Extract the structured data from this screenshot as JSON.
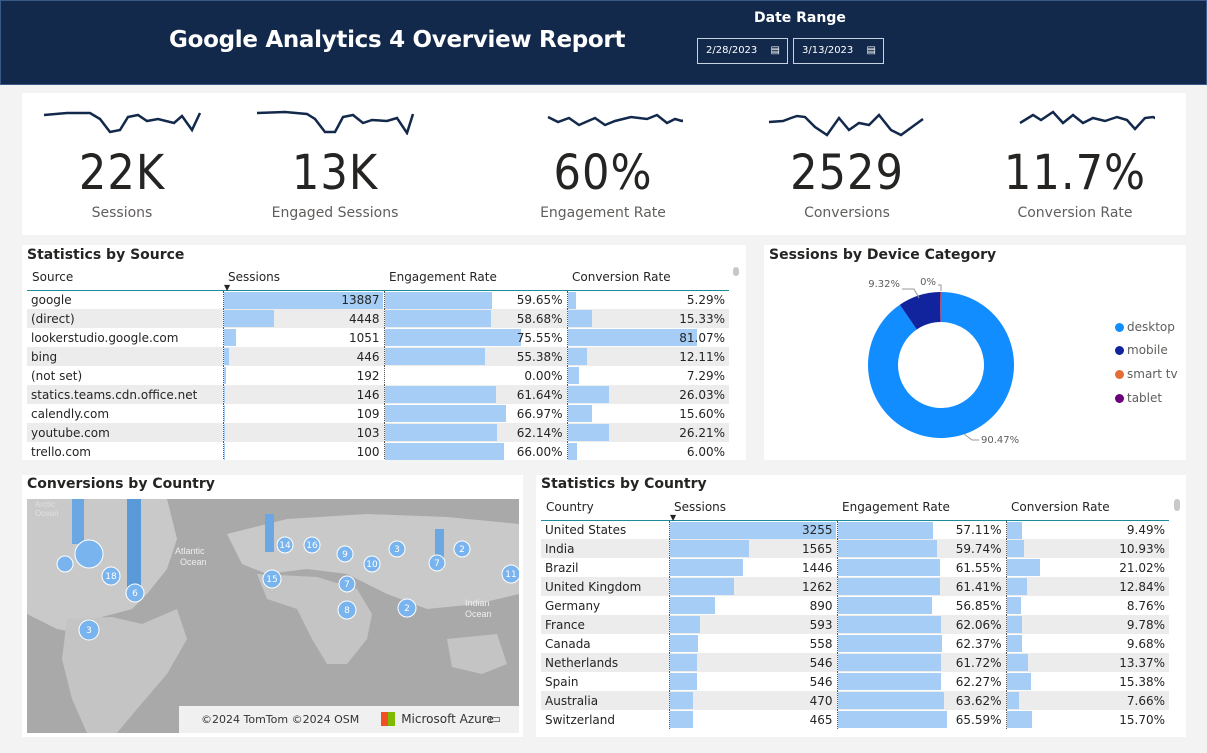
{
  "header": {
    "title": "Google Analytics 4 Overview Report",
    "date_range_label": "Date Range",
    "start_date": "2/28/2023",
    "end_date": "3/13/2023"
  },
  "kpis": [
    {
      "value": "22K",
      "label": "Sessions"
    },
    {
      "value": "13K",
      "label": "Engaged Sessions"
    },
    {
      "value": "60%",
      "label": "Engagement Rate"
    },
    {
      "value": "2529",
      "label": "Conversions"
    },
    {
      "value": "11.7%",
      "label": "Conversion Rate"
    }
  ],
  "source_table": {
    "title": "Statistics by Source",
    "columns": [
      "Source",
      "Sessions",
      "Engagement Rate",
      "Conversion Rate"
    ],
    "rows": [
      {
        "name": "google",
        "sessions": "13887",
        "eng": "59.65%",
        "conv": "5.29%",
        "s": 13887,
        "e": 59.65,
        "c": 5.29
      },
      {
        "name": "(direct)",
        "sessions": "4448",
        "eng": "58.68%",
        "conv": "15.33%",
        "s": 4448,
        "e": 58.68,
        "c": 15.33
      },
      {
        "name": "lookerstudio.google.com",
        "sessions": "1051",
        "eng": "75.55%",
        "conv": "81.07%",
        "s": 1051,
        "e": 75.55,
        "c": 81.07
      },
      {
        "name": "bing",
        "sessions": "446",
        "eng": "55.38%",
        "conv": "12.11%",
        "s": 446,
        "e": 55.38,
        "c": 12.11
      },
      {
        "name": "(not set)",
        "sessions": "192",
        "eng": "0.00%",
        "conv": "7.29%",
        "s": 192,
        "e": 0,
        "c": 7.29
      },
      {
        "name": "statics.teams.cdn.office.net",
        "sessions": "146",
        "eng": "61.64%",
        "conv": "26.03%",
        "s": 146,
        "e": 61.64,
        "c": 26.03
      },
      {
        "name": "calendly.com",
        "sessions": "109",
        "eng": "66.97%",
        "conv": "15.60%",
        "s": 109,
        "e": 66.97,
        "c": 15.6
      },
      {
        "name": "youtube.com",
        "sessions": "103",
        "eng": "62.14%",
        "conv": "26.21%",
        "s": 103,
        "e": 62.14,
        "c": 26.21
      },
      {
        "name": "trello.com",
        "sessions": "100",
        "eng": "66.00%",
        "conv": "6.00%",
        "s": 100,
        "e": 66.0,
        "c": 6.0
      }
    ]
  },
  "device_chart": {
    "title": "Sessions by Device Category",
    "slices": [
      {
        "name": "desktop",
        "value": 90.47,
        "label": "90.47%",
        "color": "#118dff"
      },
      {
        "name": "mobile",
        "value": 9.32,
        "label": "9.32%",
        "color": "#12239e"
      },
      {
        "name": "smart tv",
        "value": 0.1,
        "label": "0%",
        "color": "#e66c37"
      },
      {
        "name": "tablet",
        "value": 0.11,
        "label": "",
        "color": "#6b007b"
      }
    ]
  },
  "map": {
    "title": "Conversions by Country",
    "labels": {
      "atlantic": "Atlantic\nOcean",
      "indian": "Indian\nOcean",
      "arctic": "Arctic\nOcean"
    },
    "bubbles": [
      "18",
      "6",
      "3",
      "14",
      "16",
      "9",
      "3",
      "2",
      "10",
      "7",
      "8",
      "2",
      "11",
      "15",
      "7"
    ],
    "footer_copyright": "©2024 TomTom  ©2024 OSM",
    "footer_brand": "Microsoft Azure"
  },
  "country_table": {
    "title": "Statistics by Country",
    "columns": [
      "Country",
      "Sessions",
      "Engagement Rate",
      "Conversion Rate"
    ],
    "rows": [
      {
        "name": "United States",
        "sessions": "3255",
        "eng": "57.11%",
        "conv": "9.49%",
        "s": 3255,
        "e": 57.11,
        "c": 9.49
      },
      {
        "name": "India",
        "sessions": "1565",
        "eng": "59.74%",
        "conv": "10.93%",
        "s": 1565,
        "e": 59.74,
        "c": 10.93
      },
      {
        "name": "Brazil",
        "sessions": "1446",
        "eng": "61.55%",
        "conv": "21.02%",
        "s": 1446,
        "e": 61.55,
        "c": 21.02
      },
      {
        "name": "United Kingdom",
        "sessions": "1262",
        "eng": "61.41%",
        "conv": "12.84%",
        "s": 1262,
        "e": 61.41,
        "c": 12.84
      },
      {
        "name": "Germany",
        "sessions": "890",
        "eng": "56.85%",
        "conv": "8.76%",
        "s": 890,
        "e": 56.85,
        "c": 8.76
      },
      {
        "name": "France",
        "sessions": "593",
        "eng": "62.06%",
        "conv": "9.78%",
        "s": 593,
        "e": 62.06,
        "c": 9.78
      },
      {
        "name": "Canada",
        "sessions": "558",
        "eng": "62.37%",
        "conv": "9.68%",
        "s": 558,
        "e": 62.37,
        "c": 9.68
      },
      {
        "name": "Netherlands",
        "sessions": "546",
        "eng": "61.72%",
        "conv": "13.37%",
        "s": 546,
        "e": 61.72,
        "c": 13.37
      },
      {
        "name": "Spain",
        "sessions": "546",
        "eng": "62.27%",
        "conv": "15.38%",
        "s": 546,
        "e": 62.27,
        "c": 15.38
      },
      {
        "name": "Australia",
        "sessions": "470",
        "eng": "63.62%",
        "conv": "7.66%",
        "s": 470,
        "e": 63.62,
        "c": 7.66
      },
      {
        "name": "Switzerland",
        "sessions": "465",
        "eng": "65.59%",
        "conv": "15.70%",
        "s": 465,
        "e": 65.59,
        "c": 15.7
      }
    ]
  }
}
